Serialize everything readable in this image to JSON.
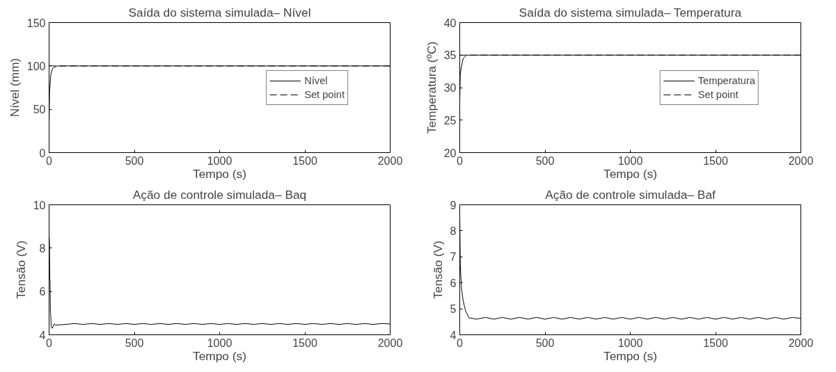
{
  "chart_data": [
    {
      "type": "line",
      "title": "Saída do sistema simulada– Nível",
      "xlabel": "Tempo (s)",
      "ylabel": "Nível (mm)",
      "xlim": [
        0,
        2000
      ],
      "ylim": [
        0,
        150
      ],
      "xticks": [
        0,
        500,
        1000,
        1500,
        2000
      ],
      "yticks": [
        0,
        50,
        100,
        150
      ],
      "grid": false,
      "legend": "right",
      "series": [
        {
          "name": "Nível",
          "color": "#000000",
          "line_style": "solid",
          "x": [
            0,
            3,
            5,
            10,
            20,
            35,
            50,
            2000
          ],
          "values": [
            33,
            72,
            75,
            90,
            97,
            99,
            100,
            100
          ]
        },
        {
          "name": "Set point",
          "color": "#000000",
          "line_style": "dashed",
          "x": [
            0,
            2000
          ],
          "values": [
            100,
            100
          ]
        }
      ]
    },
    {
      "type": "line",
      "title": "Saída do sistema simulada– Temperatura",
      "xlabel": "Tempo (s)",
      "ylabel": "Temperatura (ºC)",
      "xlim": [
        0,
        2000
      ],
      "ylim": [
        20,
        40
      ],
      "xticks": [
        0,
        500,
        1000,
        1500,
        2000
      ],
      "yticks": [
        20,
        25,
        30,
        35,
        40
      ],
      "grid": false,
      "legend": "right",
      "series": [
        {
          "name": "Temperatura",
          "color": "#000000",
          "line_style": "solid",
          "x": [
            0,
            3,
            8,
            20,
            40,
            2000
          ],
          "values": [
            28,
            32,
            33,
            34.5,
            35,
            35
          ]
        },
        {
          "name": "Set point",
          "color": "#000000",
          "line_style": "dashed",
          "x": [
            0,
            2000
          ],
          "values": [
            35,
            35
          ]
        }
      ]
    },
    {
      "type": "line",
      "title": "Ação de controle simulada– Baq",
      "xlabel": "Tempo (s)",
      "ylabel": "Tensão (V)",
      "xlim": [
        0,
        2000
      ],
      "ylim": [
        4,
        10
      ],
      "xticks": [
        0,
        500,
        1000,
        1500,
        2000
      ],
      "yticks": [
        4,
        6,
        8,
        10
      ],
      "grid": false,
      "series": [
        {
          "color": "#000000",
          "line_style": "solid",
          "x": [
            0,
            2,
            4,
            6,
            8,
            10,
            12,
            18,
            30,
            40,
            100,
            150,
            200,
            250,
            300,
            350,
            400,
            450,
            500,
            550,
            600,
            650,
            700,
            750,
            800,
            850,
            900,
            950,
            1000,
            1050,
            1100,
            1150,
            1200,
            1250,
            1300,
            1350,
            1400,
            1450,
            1500,
            1550,
            1600,
            1650,
            1700,
            1750,
            1800,
            1850,
            1900,
            1950,
            2000
          ],
          "values": [
            8.5,
            8.4,
            6.6,
            6.5,
            5.0,
            4.9,
            4.4,
            4.3,
            4.5,
            4.45,
            4.48,
            4.52,
            4.48,
            4.52,
            4.48,
            4.52,
            4.48,
            4.52,
            4.48,
            4.52,
            4.48,
            4.52,
            4.48,
            4.52,
            4.48,
            4.52,
            4.48,
            4.52,
            4.48,
            4.52,
            4.48,
            4.52,
            4.48,
            4.52,
            4.48,
            4.52,
            4.48,
            4.52,
            4.48,
            4.52,
            4.48,
            4.52,
            4.48,
            4.52,
            4.48,
            4.52,
            4.48,
            4.52,
            4.5
          ]
        }
      ]
    },
    {
      "type": "line",
      "title": "Ação de controle simulada– Baf",
      "xlabel": "Tempo (s)",
      "ylabel": "Tensão (V)",
      "xlim": [
        0,
        2000
      ],
      "ylim": [
        4,
        9
      ],
      "xticks": [
        0,
        500,
        1000,
        1500,
        2000
      ],
      "yticks": [
        4,
        5,
        6,
        7,
        8,
        9
      ],
      "grid": false,
      "series": [
        {
          "color": "#000000",
          "line_style": "solid",
          "x": [
            0,
            3,
            10,
            20,
            35,
            55,
            100,
            150,
            200,
            250,
            300,
            350,
            400,
            450,
            500,
            550,
            600,
            650,
            700,
            750,
            800,
            850,
            900,
            950,
            1000,
            1050,
            1100,
            1150,
            1200,
            1250,
            1300,
            1350,
            1400,
            1450,
            1500,
            1550,
            1600,
            1650,
            1700,
            1750,
            1800,
            1850,
            1900,
            1950,
            2000
          ],
          "values": [
            8.6,
            6.7,
            5.8,
            5.3,
            4.9,
            4.65,
            4.6,
            4.67,
            4.6,
            4.67,
            4.6,
            4.67,
            4.6,
            4.67,
            4.6,
            4.67,
            4.6,
            4.67,
            4.6,
            4.67,
            4.6,
            4.67,
            4.6,
            4.67,
            4.6,
            4.67,
            4.6,
            4.67,
            4.6,
            4.67,
            4.6,
            4.67,
            4.6,
            4.67,
            4.6,
            4.67,
            4.6,
            4.67,
            4.6,
            4.67,
            4.6,
            4.67,
            4.6,
            4.67,
            4.63
          ]
        }
      ]
    }
  ]
}
